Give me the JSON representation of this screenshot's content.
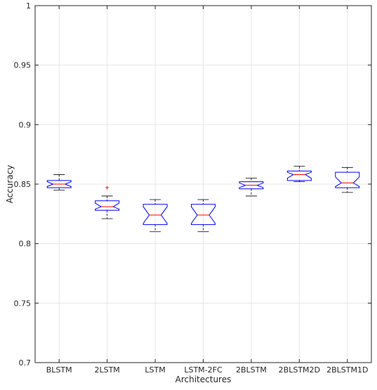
{
  "chart_data": {
    "type": "box",
    "xlabel": "Architectures",
    "ylabel": "Accuracy",
    "ylim": [
      0.7,
      1.0
    ],
    "yticks": [
      0.7,
      0.75,
      0.8,
      0.85,
      0.9,
      0.95,
      1
    ],
    "ytick_labels": [
      "0.7",
      "0.75",
      "0.8",
      "0.85",
      "0.9",
      "0.95",
      "1"
    ],
    "grid": true,
    "notched": true,
    "colors": {
      "box": "#0000ff",
      "median": "#ff0000",
      "whisker": "#000000",
      "outlier": "#ff0000",
      "grid": "#e6e6e6"
    },
    "categories": [
      "BLSTM",
      "2LSTM",
      "LSTM",
      "LSTM-2FC",
      "2BLSTM",
      "2BLSTM2D",
      "2BLSTM1D"
    ],
    "boxes": [
      {
        "label": "BLSTM",
        "whisker_low": 0.845,
        "q1": 0.847,
        "median": 0.85,
        "q3": 0.853,
        "whisker_high": 0.858,
        "notch_low": 0.848,
        "notch_high": 0.852,
        "outliers": []
      },
      {
        "label": "2LSTM",
        "whisker_low": 0.821,
        "q1": 0.828,
        "median": 0.831,
        "q3": 0.836,
        "whisker_high": 0.84,
        "notch_low": 0.829,
        "notch_high": 0.834,
        "outliers": [
          0.847
        ]
      },
      {
        "label": "LSTM",
        "whisker_low": 0.81,
        "q1": 0.816,
        "median": 0.824,
        "q3": 0.833,
        "whisker_high": 0.837,
        "notch_low": 0.817,
        "notch_high": 0.831,
        "outliers": []
      },
      {
        "label": "LSTM-2FC",
        "whisker_low": 0.81,
        "q1": 0.816,
        "median": 0.824,
        "q3": 0.833,
        "whisker_high": 0.837,
        "notch_low": 0.817,
        "notch_high": 0.831,
        "outliers": []
      },
      {
        "label": "2BLSTM",
        "whisker_low": 0.84,
        "q1": 0.846,
        "median": 0.849,
        "q3": 0.852,
        "whisker_high": 0.855,
        "notch_low": 0.847,
        "notch_high": 0.851,
        "outliers": []
      },
      {
        "label": "2BLSTM2D",
        "whisker_low": 0.852,
        "q1": 0.853,
        "median": 0.858,
        "q3": 0.861,
        "whisker_high": 0.865,
        "notch_low": 0.855,
        "notch_high": 0.86,
        "outliers": []
      },
      {
        "label": "2BLSTM1D",
        "whisker_low": 0.843,
        "q1": 0.847,
        "median": 0.851,
        "q3": 0.86,
        "whisker_high": 0.864,
        "notch_low": 0.848,
        "notch_high": 0.856,
        "outliers": []
      }
    ]
  }
}
